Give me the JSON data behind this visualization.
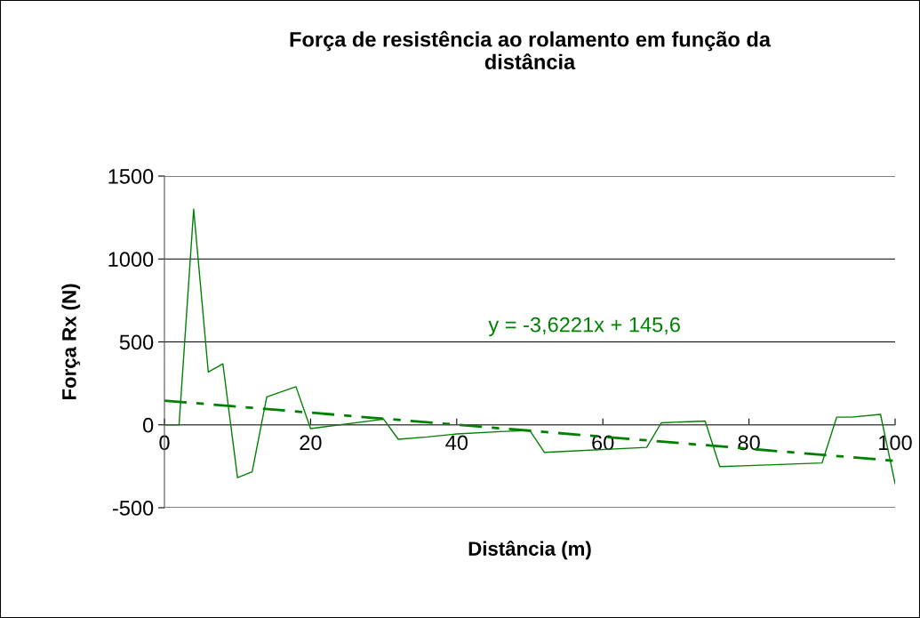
{
  "chart_data": {
    "type": "line",
    "title": "Força de resistência ao rolamento em função da\ndistância",
    "xlabel": "Distância (m)",
    "ylabel": "Força Rx (N)",
    "series": [
      {
        "color": "#008000",
        "line_style": "solid",
        "x": [
          0,
          2,
          4,
          6,
          8,
          10,
          12,
          14,
          18,
          20,
          30,
          32,
          36,
          40,
          46,
          50,
          52,
          66,
          68,
          74,
          76,
          80,
          90,
          92,
          94,
          98,
          100
        ],
        "values": [
          0,
          0,
          1300,
          318,
          368,
          -318,
          -284,
          168,
          230,
          -23,
          34,
          -87,
          -73,
          -55,
          -41,
          -34,
          -166,
          -136,
          12,
          23,
          -252,
          -246,
          -230,
          46,
          46,
          63,
          -355
        ]
      },
      {
        "color": "#008000",
        "line_style": "dashed",
        "x": [
          0,
          100
        ],
        "values": [
          146,
          -217
        ]
      }
    ],
    "annotations": [
      "y = -3,6221x + 145,6"
    ],
    "xlim": [
      0,
      100
    ],
    "xticks": [
      0,
      20,
      40,
      60,
      80,
      100
    ],
    "ylim": [
      -500,
      1500
    ],
    "yticks": [
      -500,
      0,
      500,
      1000,
      1500
    ],
    "grid": "y",
    "marker": "none"
  }
}
